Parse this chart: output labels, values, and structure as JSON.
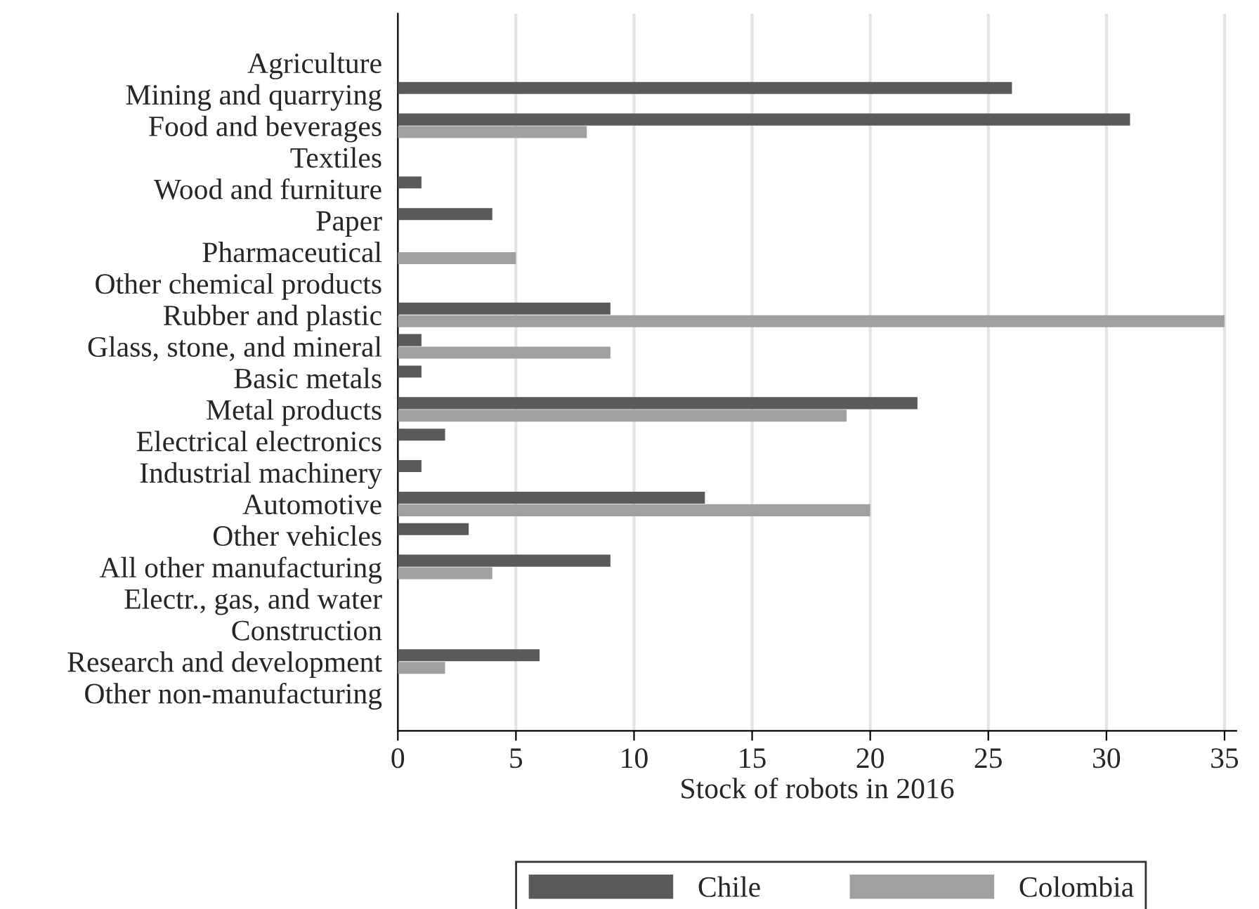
{
  "chart_data": {
    "type": "bar",
    "orientation": "horizontal",
    "xlabel": "Stock of robots in 2016",
    "categories": [
      "Agriculture",
      "Mining and quarrying",
      "Food and beverages",
      "Textiles",
      "Wood and furniture",
      "Paper",
      "Pharmaceutical",
      "Other chemical products",
      "Rubber and plastic",
      "Glass, stone, and mineral",
      "Basic metals",
      "Metal products",
      "Electrical electronics",
      "Industrial machinery",
      "Automotive",
      "Other vehicles",
      "All other manufacturing",
      "Electr., gas, and water",
      "Construction",
      "Research and development",
      "Other non-manufacturing"
    ],
    "series": [
      {
        "name": "Chile",
        "color": "#5a5a5a",
        "values": [
          0,
          26,
          31,
          0,
          1,
          4,
          0,
          0,
          9,
          1,
          1,
          22,
          2,
          1,
          13,
          3,
          9,
          0,
          0,
          6,
          0
        ]
      },
      {
        "name": "Colombia",
        "color": "#a0a0a0",
        "values": [
          0,
          0,
          8,
          0,
          0,
          0,
          5,
          0,
          35,
          9,
          0,
          19,
          0,
          0,
          20,
          0,
          4,
          0,
          0,
          2,
          0
        ]
      }
    ],
    "xlim": [
      0,
      35.5
    ],
    "xticks": [
      0,
      5,
      10,
      15,
      20,
      25,
      30,
      35
    ],
    "grid": "x",
    "legend": "bottom"
  }
}
